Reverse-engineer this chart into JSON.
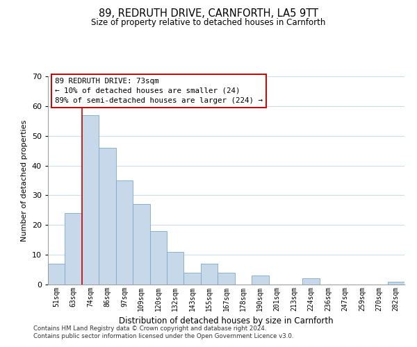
{
  "title": "89, REDRUTH DRIVE, CARNFORTH, LA5 9TT",
  "subtitle": "Size of property relative to detached houses in Carnforth",
  "xlabel": "Distribution of detached houses by size in Carnforth",
  "ylabel": "Number of detached properties",
  "bin_labels": [
    "51sqm",
    "63sqm",
    "74sqm",
    "86sqm",
    "97sqm",
    "109sqm",
    "120sqm",
    "132sqm",
    "143sqm",
    "155sqm",
    "167sqm",
    "178sqm",
    "190sqm",
    "201sqm",
    "213sqm",
    "224sqm",
    "236sqm",
    "247sqm",
    "259sqm",
    "270sqm",
    "282sqm"
  ],
  "bar_heights": [
    7,
    24,
    57,
    46,
    35,
    27,
    18,
    11,
    4,
    7,
    4,
    0,
    3,
    0,
    0,
    2,
    0,
    0,
    0,
    0,
    1
  ],
  "bar_color": "#c8d8eb",
  "bar_edge_color": "#7aaac8",
  "highlight_color": "#cc0000",
  "ylim": [
    0,
    70
  ],
  "yticks": [
    0,
    10,
    20,
    30,
    40,
    50,
    60,
    70
  ],
  "annotation_title": "89 REDRUTH DRIVE: 73sqm",
  "annotation_line1": "← 10% of detached houses are smaller (24)",
  "annotation_line2": "89% of semi-detached houses are larger (224) →",
  "footer_line1": "Contains HM Land Registry data © Crown copyright and database right 2024.",
  "footer_line2": "Contains public sector information licensed under the Open Government Licence v3.0.",
  "background_color": "#ffffff",
  "grid_color": "#ccdded"
}
